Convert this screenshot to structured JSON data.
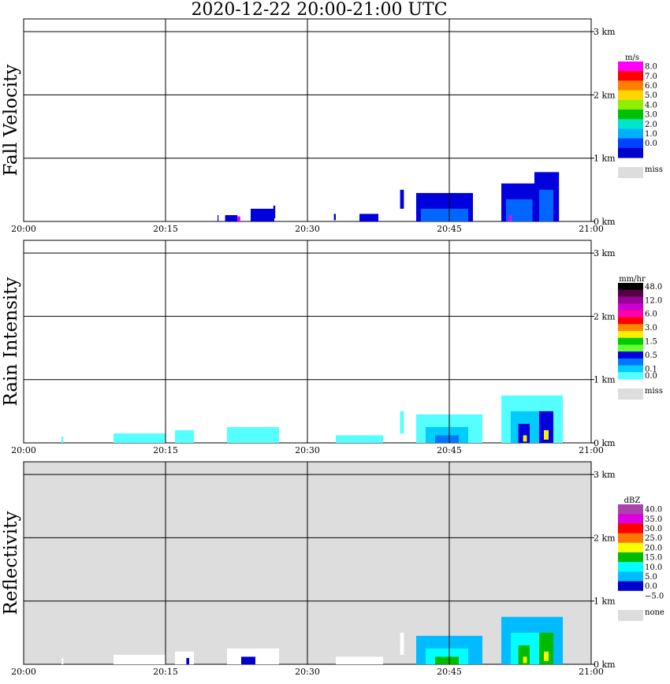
{
  "title": "2020-12-22   20:00-21:00 UTC",
  "chart_data": [
    {
      "type": "heatmap",
      "ylabel": "Fall Velocity",
      "unit": "m/s",
      "background": "#ffffff",
      "x_ticks": [
        "20:00",
        "20:15",
        "20:30",
        "20:45",
        "21:00"
      ],
      "y_ticks": [
        "0 km",
        "1 km",
        "2 km",
        "3 km"
      ],
      "ylim_km": [
        0,
        3.2
      ],
      "legend": [
        {
          "label": "8.0",
          "color": "#ff00ff"
        },
        {
          "label": "7.0",
          "color": "#ff0000"
        },
        {
          "label": "6.0",
          "color": "#ff7f00"
        },
        {
          "label": "5.0",
          "color": "#ffd700"
        },
        {
          "label": "4.0",
          "color": "#90ee00"
        },
        {
          "label": "3.0",
          "color": "#00c000"
        },
        {
          "label": "2.0",
          "color": "#00e5cc"
        },
        {
          "label": "1.0",
          "color": "#00b0ff"
        },
        {
          "label": "0.0",
          "color": "#0040ff"
        },
        {
          "label": "",
          "color": "#0000cc"
        },
        {
          "label": "miss",
          "color": "#dddddd",
          "miss": true
        }
      ],
      "echoes": [
        {
          "t": [
            20.5,
            20.6
          ],
          "h": [
            0.0,
            0.1
          ],
          "c": "#0000dd"
        },
        {
          "t": [
            21.3,
            22.6
          ],
          "h": [
            0.0,
            0.1
          ],
          "c": "#0000dd"
        },
        {
          "t": [
            22.6,
            22.9
          ],
          "h": [
            0.0,
            0.08
          ],
          "c": "#ee00ff"
        },
        {
          "t": [
            24.0,
            26.5
          ],
          "h": [
            0.0,
            0.2
          ],
          "c": "#0000dd"
        },
        {
          "t": [
            26.4,
            26.6
          ],
          "h": [
            0.05,
            0.25
          ],
          "c": "#0000dd"
        },
        {
          "t": [
            32.8,
            33.0
          ],
          "h": [
            0.02,
            0.12
          ],
          "c": "#0000dd"
        },
        {
          "t": [
            35.5,
            37.5
          ],
          "h": [
            0.0,
            0.12
          ],
          "c": "#0000dd"
        },
        {
          "t": [
            39.8,
            40.2
          ],
          "h": [
            0.2,
            0.5
          ],
          "c": "#0000dd"
        },
        {
          "t": [
            41.5,
            47.5
          ],
          "h": [
            0.0,
            0.45
          ],
          "c": "#0000dd"
        },
        {
          "t": [
            42.0,
            47.0
          ],
          "h": [
            0.0,
            0.2
          ],
          "c": "#0066ff"
        },
        {
          "t": [
            50.5,
            54.0
          ],
          "h": [
            0.0,
            0.6
          ],
          "c": "#0000dd"
        },
        {
          "t": [
            51.0,
            53.8
          ],
          "h": [
            0.0,
            0.35
          ],
          "c": "#0066ff"
        },
        {
          "t": [
            51.3,
            51.6
          ],
          "h": [
            0.0,
            0.1
          ],
          "c": "#ee00ff"
        },
        {
          "t": [
            54.0,
            56.6
          ],
          "h": [
            0.0,
            0.78
          ],
          "c": "#0000dd"
        },
        {
          "t": [
            54.5,
            56.0
          ],
          "h": [
            0.0,
            0.5
          ],
          "c": "#0066ff"
        }
      ]
    },
    {
      "type": "heatmap",
      "ylabel": "Rain Intensity",
      "unit": "mm/hr",
      "background": "#ffffff",
      "x_ticks": [
        "20:00",
        "20:15",
        "20:30",
        "20:45",
        "21:00"
      ],
      "y_ticks": [
        "0 km",
        "1 km",
        "2 km",
        "3 km"
      ],
      "ylim_km": [
        0,
        3.2
      ],
      "legend": [
        {
          "label": "48.0",
          "color": "#000000"
        },
        {
          "label": "",
          "color": "#550044"
        },
        {
          "label": "12.0",
          "color": "#990099"
        },
        {
          "label": "",
          "color": "#cc00cc"
        },
        {
          "label": "6.0",
          "color": "#ff00aa"
        },
        {
          "label": "",
          "color": "#ff0000"
        },
        {
          "label": "3.0",
          "color": "#ff8800"
        },
        {
          "label": "",
          "color": "#ffee00"
        },
        {
          "label": "1.5",
          "color": "#00cc00"
        },
        {
          "label": "",
          "color": "#66ff33"
        },
        {
          "label": "0.5",
          "color": "#0000dd"
        },
        {
          "label": "",
          "color": "#0077ff"
        },
        {
          "label": "0.1",
          "color": "#00ccff"
        },
        {
          "label": "0.0",
          "color": "#55ffff"
        },
        {
          "label": "miss",
          "color": "#dddddd",
          "miss": true
        }
      ],
      "echoes": [
        {
          "t": [
            4.0,
            4.2
          ],
          "h": [
            0.0,
            0.1
          ],
          "c": "#55ffff"
        },
        {
          "t": [
            9.5,
            15.0
          ],
          "h": [
            0.0,
            0.15
          ],
          "c": "#55ffff"
        },
        {
          "t": [
            16.0,
            18.0
          ],
          "h": [
            0.0,
            0.2
          ],
          "c": "#55ffff"
        },
        {
          "t": [
            21.5,
            27.0
          ],
          "h": [
            0.0,
            0.25
          ],
          "c": "#55ffff"
        },
        {
          "t": [
            33.0,
            38.0
          ],
          "h": [
            0.0,
            0.12
          ],
          "c": "#55ffff"
        },
        {
          "t": [
            39.8,
            40.2
          ],
          "h": [
            0.15,
            0.5
          ],
          "c": "#55ffff"
        },
        {
          "t": [
            41.5,
            48.5
          ],
          "h": [
            0.0,
            0.45
          ],
          "c": "#55ffff"
        },
        {
          "t": [
            42.5,
            47.0
          ],
          "h": [
            0.0,
            0.25
          ],
          "c": "#00ccff"
        },
        {
          "t": [
            43.5,
            46.0
          ],
          "h": [
            0.0,
            0.12
          ],
          "c": "#0077ff"
        },
        {
          "t": [
            50.5,
            57.0
          ],
          "h": [
            0.0,
            0.75
          ],
          "c": "#55ffff"
        },
        {
          "t": [
            51.5,
            56.0
          ],
          "h": [
            0.0,
            0.5
          ],
          "c": "#00ccff"
        },
        {
          "t": [
            52.3,
            53.5
          ],
          "h": [
            0.0,
            0.3
          ],
          "c": "#0000dd"
        },
        {
          "t": [
            52.8,
            53.2
          ],
          "h": [
            0.02,
            0.12
          ],
          "c": "#ffee00"
        },
        {
          "t": [
            54.5,
            56.0
          ],
          "h": [
            0.0,
            0.5
          ],
          "c": "#0000dd"
        },
        {
          "t": [
            55.0,
            55.5
          ],
          "h": [
            0.05,
            0.2
          ],
          "c": "#ffee00"
        }
      ]
    },
    {
      "type": "heatmap",
      "ylabel": "Reflectivity",
      "unit": "dBZ",
      "background": "#dddddd",
      "x_ticks": [
        "20:00",
        "20:15",
        "20:30",
        "20:45",
        "21:00"
      ],
      "y_ticks": [
        "0 km",
        "1 km",
        "2 km",
        "3 km"
      ],
      "ylim_km": [
        0,
        3.2
      ],
      "legend": [
        {
          "label": "40.0",
          "color": "#aa44aa"
        },
        {
          "label": "35.0",
          "color": "#dd00dd"
        },
        {
          "label": "30.0",
          "color": "#ff0000"
        },
        {
          "label": "25.0",
          "color": "#ff7700"
        },
        {
          "label": "20.0",
          "color": "#ffff00"
        },
        {
          "label": "15.0",
          "color": "#00bb00"
        },
        {
          "label": "10.0",
          "color": "#00ffff"
        },
        {
          "label": "5.0",
          "color": "#00bbff"
        },
        {
          "label": "0.0",
          "color": "#0000cc"
        },
        {
          "label": "−5.0",
          "color": "#ffffff"
        },
        {
          "label": "none",
          "color": "#dddddd",
          "miss": true
        }
      ],
      "echoes": [
        {
          "t": [
            4.0,
            4.2
          ],
          "h": [
            0.0,
            0.1
          ],
          "c": "#ffffff"
        },
        {
          "t": [
            9.5,
            15.0
          ],
          "h": [
            0.0,
            0.15
          ],
          "c": "#ffffff"
        },
        {
          "t": [
            16.0,
            18.0
          ],
          "h": [
            0.0,
            0.2
          ],
          "c": "#ffffff"
        },
        {
          "t": [
            17.2,
            17.5
          ],
          "h": [
            0.0,
            0.1
          ],
          "c": "#0000cc"
        },
        {
          "t": [
            21.5,
            27.0
          ],
          "h": [
            0.0,
            0.25
          ],
          "c": "#ffffff"
        },
        {
          "t": [
            23.0,
            24.5
          ],
          "h": [
            0.0,
            0.12
          ],
          "c": "#0000cc"
        },
        {
          "t": [
            33.0,
            38.0
          ],
          "h": [
            0.0,
            0.12
          ],
          "c": "#ffffff"
        },
        {
          "t": [
            39.8,
            40.2
          ],
          "h": [
            0.15,
            0.5
          ],
          "c": "#ffffff"
        },
        {
          "t": [
            41.5,
            48.5
          ],
          "h": [
            0.0,
            0.45
          ],
          "c": "#00bbff"
        },
        {
          "t": [
            42.5,
            47.0
          ],
          "h": [
            0.0,
            0.25
          ],
          "c": "#00ffff"
        },
        {
          "t": [
            43.5,
            46.0
          ],
          "h": [
            0.0,
            0.12
          ],
          "c": "#00bb00"
        },
        {
          "t": [
            50.5,
            57.0
          ],
          "h": [
            0.0,
            0.75
          ],
          "c": "#00bbff"
        },
        {
          "t": [
            51.5,
            56.0
          ],
          "h": [
            0.0,
            0.5
          ],
          "c": "#00ffff"
        },
        {
          "t": [
            52.3,
            53.5
          ],
          "h": [
            0.0,
            0.3
          ],
          "c": "#00bb00"
        },
        {
          "t": [
            52.8,
            53.2
          ],
          "h": [
            0.02,
            0.12
          ],
          "c": "#ffff00"
        },
        {
          "t": [
            54.5,
            56.0
          ],
          "h": [
            0.0,
            0.5
          ],
          "c": "#00bb00"
        },
        {
          "t": [
            55.0,
            55.5
          ],
          "h": [
            0.05,
            0.2
          ],
          "c": "#ffff00"
        }
      ]
    }
  ]
}
